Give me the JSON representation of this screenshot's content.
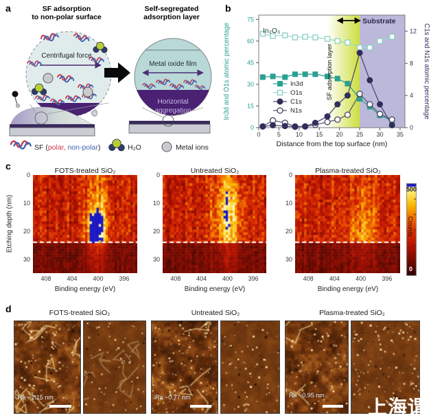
{
  "panel_a": {
    "label": "a",
    "title_left_1": "SF adsorption",
    "title_left_2": "to non-polar surface",
    "title_right_1": "Self-segregated",
    "title_right_2": "adsorption layer",
    "centrifugal_force": "Centrifugal force",
    "metal_oxide_film": "Metal oxide film",
    "horizontal_1": "Horizontal",
    "horizontal_2": "aggregation",
    "legend": {
      "sf_prefix": "SF (",
      "sf_polar": "polar,",
      "sf_nonpolar": " non-polar",
      "sf_suffix": ")",
      "water": "H₂O",
      "metal_ions": "Metal ions"
    }
  },
  "panel_b": {
    "label": "b"
  },
  "panel_c": {
    "label": "c"
  },
  "panel_d": {
    "label": "d"
  },
  "watermark": "上海谓",
  "colors": {
    "teal": "#2aa092",
    "teal_light": "#8fd2c6",
    "navy": "#302e5c",
    "navy_light": "#45435f",
    "purple_dark": "#4a2173",
    "purple_arrow": "#4b2d73",
    "sf_polar_red": "#c8384a",
    "sf_nonpolar_blue": "#3c63b0",
    "substrate_band": "#bcb8d9",
    "sf_gradient": "#cdde3c",
    "heat_saturated_blue": "#1c18c4"
  },
  "chart_data": [
    {
      "id": "panel_b_profile",
      "type": "line",
      "xlabel": "Distance from the top surface (nm)",
      "ylabel_left": "In3d and O1s atomic percentage",
      "ylabel_right": "C1s and N1s atomic percentage",
      "xlim": [
        0,
        36.2
      ],
      "ylim_left": [
        0,
        78
      ],
      "ylim_right": [
        0,
        14
      ],
      "xticks": [
        0,
        5,
        10,
        15,
        20,
        25,
        30,
        35
      ],
      "yticks_left": [
        0,
        15,
        30,
        45,
        60,
        75
      ],
      "yticks_right": [
        0,
        4,
        8,
        12
      ],
      "x": [
        1,
        3.5,
        6.5,
        9,
        11.5,
        14,
        17,
        19.5,
        22,
        25,
        27.5,
        30,
        33
      ],
      "series": [
        {
          "name": "O1s",
          "axis": "left",
          "marker": "square-open",
          "values": [
            65,
            63.5,
            64,
            62.5,
            63,
            62.5,
            61.5,
            60,
            59,
            55.5,
            55.5,
            60,
            63
          ]
        },
        {
          "name": "In3d",
          "axis": "left",
          "marker": "square-filled",
          "values": [
            35,
            35.5,
            35,
            37,
            37,
            37,
            35.5,
            34,
            30.5,
            20,
            14.5,
            8.5,
            5
          ]
        },
        {
          "name": "N1s",
          "axis": "right",
          "marker": "circle-open",
          "values": [
            0.15,
            0.9,
            0.6,
            0.15,
            0.15,
            0.35,
            0.7,
            1.0,
            1.6,
            4.2,
            2.9,
            1.7,
            1.0
          ]
        },
        {
          "name": "C1s",
          "axis": "right",
          "marker": "circle-filled",
          "values": [
            0.15,
            0.3,
            0.2,
            0.1,
            0.15,
            0.6,
            1.4,
            2.9,
            4.0,
            9.3,
            5.9,
            2.9,
            0.3
          ]
        }
      ],
      "legend_order": [
        "In3d",
        "O1s",
        "C1s",
        "N1s"
      ],
      "annotations": {
        "formula": "In₂O₃",
        "substrate": "Substrate",
        "sf_layer": "SF adsorption layer",
        "gradient_region_nm": [
          17,
          25
        ],
        "substrate_region_nm": [
          25,
          36.2
        ],
        "arrow_span_nm": [
          19.6,
          25
        ]
      }
    },
    {
      "id": "panel_c_xps_depth",
      "type": "heatmap",
      "xlabel": "Binding energy (eV)",
      "ylabel": "Etching depth (nm)",
      "xticks": [
        408,
        404,
        400,
        396
      ],
      "yticks": [
        0,
        10,
        20,
        30
      ],
      "x_range_ev": [
        410,
        394
      ],
      "depth_range_nm": [
        0,
        35
      ],
      "dashed_line_nm": 24,
      "colorbar": {
        "label": "Counts",
        "max": "500",
        "min": "0"
      },
      "panels": [
        {
          "title": "FOTS-treated SiO₂",
          "peak_center_ev": 400.2,
          "peak_sigma_ev": 1.1,
          "peak_amp": 330,
          "peak_depth_center": 19,
          "peak_depth_sigma": 7,
          "saturated_blue": true
        },
        {
          "title": "Untreated SiO₂",
          "peak_center_ev": 400.0,
          "peak_sigma_ev": 1.5,
          "peak_amp": 240,
          "peak_depth_center": 14,
          "peak_depth_sigma": 9,
          "saturated_blue": false
        },
        {
          "title": "Plasma-treated SiO₂",
          "peak_center_ev": 399.8,
          "peak_sigma_ev": 1.7,
          "peak_amp": 140,
          "peak_depth_center": 20,
          "peak_depth_sigma": 8,
          "saturated_blue": false
        }
      ]
    },
    {
      "id": "panel_d_afm",
      "type": "afm-images",
      "groups": [
        {
          "title": "FOTS-treated SiO₂",
          "ra_label": "Ra ~1.15 nm",
          "images": [
            {
              "type": "height",
              "network": 1.0,
              "speckles": 0.9
            },
            {
              "type": "phase",
              "network": 0.5,
              "speckles": 0.5
            }
          ]
        },
        {
          "title": "Untreated SiO₂",
          "ra_label": "Ra ~0.77 nm",
          "images": [
            {
              "type": "height",
              "network": 0.25,
              "speckles": 1.0
            },
            {
              "type": "phase",
              "network": 0.05,
              "speckles": 0.6
            }
          ]
        },
        {
          "title": "Plasma-treated SiO₂",
          "ra_label": "Ra ~0.95 nm",
          "images": [
            {
              "type": "height",
              "network": 0.15,
              "speckles": 0.7
            },
            {
              "type": "phase",
              "network": 0.05,
              "speckles": 0.9
            }
          ]
        }
      ]
    }
  ]
}
